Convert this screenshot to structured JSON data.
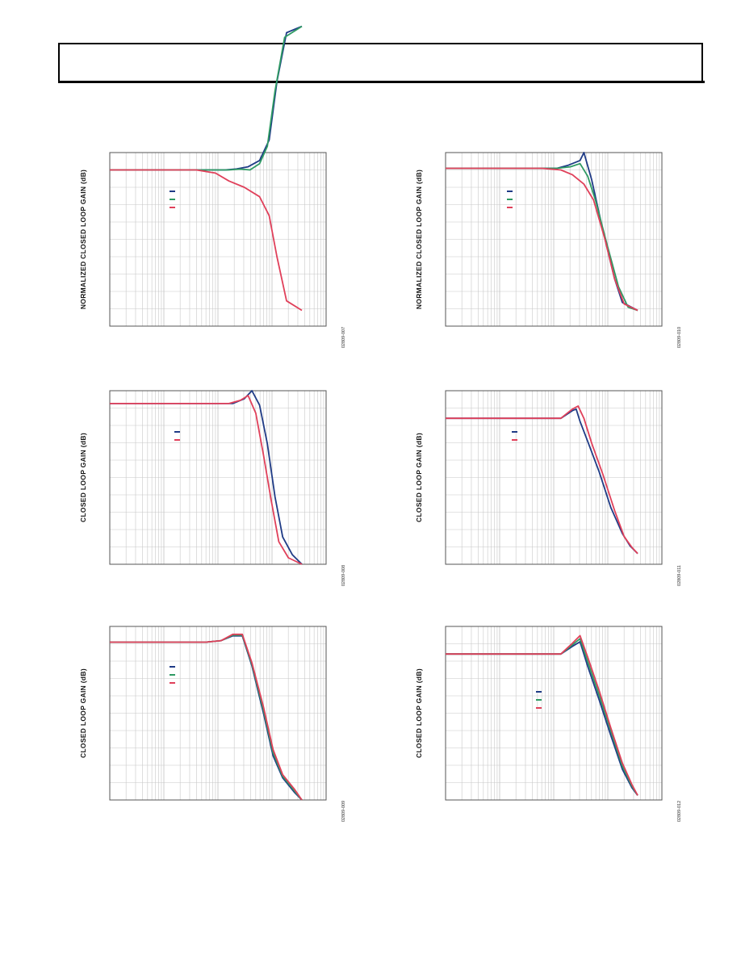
{
  "page": {
    "header": {
      "text": ""
    }
  },
  "colors": {
    "blue": "#1f3b86",
    "green": "#2e9a63",
    "red": "#e0405a",
    "grid": "#c8c8c8",
    "frame": "#555555"
  },
  "chart_data": [
    {
      "type": "line",
      "ylabel": "NORMALIZED CLOSED LOOP GAIN (dB)",
      "figure_id": "02809-007",
      "xscale": "log",
      "legend": "upper-left inside",
      "series": [
        {
          "color": "blue",
          "x": [
            0.0,
            0.6,
            0.66,
            0.72,
            0.78,
            0.83,
            0.87,
            0.92,
            1.0
          ],
          "y": [
            -0.1,
            -0.1,
            -0.04,
            0.1,
            0.5,
            1.8,
            5.5,
            8.6,
            9.0
          ]
        },
        {
          "color": "green",
          "x": [
            0.0,
            0.62,
            0.68,
            0.73,
            0.78,
            0.82,
            0.86,
            0.91,
            1.0
          ],
          "y": [
            -0.1,
            -0.1,
            -0.05,
            -0.1,
            0.3,
            1.4,
            4.9,
            8.3,
            9.0
          ]
        },
        {
          "color": "red",
          "x": [
            0.0,
            0.45,
            0.55,
            0.62,
            0.7,
            0.78,
            0.83,
            0.87,
            0.92,
            1.0
          ],
          "y": [
            -0.1,
            -0.1,
            -0.3,
            -0.8,
            -1.2,
            -1.8,
            -3.0,
            -5.6,
            -8.4,
            -9.0
          ]
        }
      ]
    },
    {
      "type": "line",
      "ylabel": "NORMALIZED CLOSED LOOP GAIN (dB)",
      "figure_id": "02809-010",
      "xscale": "log",
      "legend": "upper-left inside",
      "series": [
        {
          "color": "blue",
          "x": [
            0.0,
            0.58,
            0.64,
            0.7,
            0.72,
            0.76,
            0.82,
            0.88,
            0.92,
            1.0
          ],
          "y": [
            0.0,
            0.0,
            0.2,
            0.5,
            1.0,
            -0.7,
            -4.0,
            -7.0,
            -8.5,
            -9.0
          ]
        },
        {
          "color": "green",
          "x": [
            0.0,
            0.58,
            0.65,
            0.7,
            0.74,
            0.78,
            0.84,
            0.9,
            0.95,
            1.0
          ],
          "y": [
            0.0,
            0.0,
            0.1,
            0.3,
            -0.5,
            -2.0,
            -4.8,
            -7.5,
            -8.8,
            -9.0
          ]
        },
        {
          "color": "red",
          "x": [
            0.0,
            0.5,
            0.6,
            0.66,
            0.72,
            0.77,
            0.83,
            0.88,
            0.93,
            1.0
          ],
          "y": [
            0.0,
            0.0,
            -0.1,
            -0.4,
            -1.0,
            -2.0,
            -4.5,
            -7.0,
            -8.6,
            -9.0
          ]
        }
      ]
    },
    {
      "type": "line",
      "ylabel": "CLOSED LOOP GAIN (dB)",
      "figure_id": "02809-008",
      "xscale": "log",
      "legend": "upper-left inside",
      "series": [
        {
          "color": "blue",
          "x": [
            0.0,
            0.64,
            0.7,
            0.74,
            0.78,
            0.82,
            0.86,
            0.9,
            0.95,
            1.0
          ],
          "y": [
            0.0,
            0.0,
            0.3,
            0.8,
            -0.1,
            -2.5,
            -5.8,
            -8.3,
            -9.4,
            -10.0
          ]
        },
        {
          "color": "red",
          "x": [
            0.0,
            0.62,
            0.68,
            0.72,
            0.76,
            0.8,
            0.84,
            0.88,
            0.93,
            1.0
          ],
          "y": [
            0.0,
            0.0,
            0.2,
            0.5,
            -0.6,
            -3.2,
            -6.0,
            -8.6,
            -9.6,
            -10.0
          ]
        }
      ]
    },
    {
      "type": "line",
      "ylabel": "CLOSED LOOP GAIN (dB)",
      "figure_id": "02809-011",
      "xscale": "log",
      "legend": "upper-left inside",
      "series": [
        {
          "color": "blue",
          "x": [
            0.0,
            0.48,
            0.6,
            0.66,
            0.68,
            0.7,
            0.74,
            0.8,
            0.86,
            0.92,
            0.96,
            1.0
          ],
          "y": [
            0.0,
            0.0,
            0.0,
            0.5,
            0.6,
            -0.2,
            -1.5,
            -3.5,
            -5.8,
            -7.5,
            -8.3,
            -8.8
          ]
        },
        {
          "color": "red",
          "x": [
            0.0,
            0.48,
            0.6,
            0.66,
            0.69,
            0.72,
            0.76,
            0.82,
            0.88,
            0.93,
            0.97,
            1.0
          ],
          "y": [
            0.0,
            0.0,
            0.0,
            0.6,
            0.8,
            0.0,
            -1.6,
            -3.7,
            -6.0,
            -7.7,
            -8.4,
            -8.8
          ]
        }
      ]
    },
    {
      "type": "line",
      "ylabel": "CLOSED LOOP GAIN (dB)",
      "figure_id": "02809-009",
      "xscale": "log",
      "legend": "upper-left inside",
      "series": [
        {
          "color": "blue",
          "x": [
            0.0,
            0.5,
            0.58,
            0.64,
            0.69,
            0.74,
            0.8,
            0.85,
            0.9,
            0.96,
            1.0
          ],
          "y": [
            0.0,
            0.0,
            0.1,
            0.4,
            0.4,
            -1.5,
            -4.5,
            -7.2,
            -8.6,
            -9.5,
            -10.0
          ]
        },
        {
          "color": "green",
          "x": [
            0.0,
            0.5,
            0.58,
            0.64,
            0.69,
            0.74,
            0.8,
            0.85,
            0.9,
            0.96,
            1.0
          ],
          "y": [
            0.0,
            0.0,
            0.1,
            0.45,
            0.45,
            -1.4,
            -4.3,
            -7.0,
            -8.5,
            -9.4,
            -10.0
          ]
        },
        {
          "color": "red",
          "x": [
            0.0,
            0.5,
            0.58,
            0.64,
            0.69,
            0.74,
            0.8,
            0.85,
            0.9,
            0.96,
            1.0
          ],
          "y": [
            0.0,
            0.0,
            0.1,
            0.5,
            0.5,
            -1.3,
            -4.1,
            -6.8,
            -8.4,
            -9.3,
            -10.0
          ]
        }
      ]
    },
    {
      "type": "line",
      "ylabel": "CLOSED LOOP GAIN (dB)",
      "figure_id": "02809-012",
      "xscale": "log",
      "legend": "upper-left inside",
      "series": [
        {
          "color": "blue",
          "x": [
            0.0,
            0.3,
            0.6,
            0.66,
            0.7,
            0.74,
            0.8,
            0.86,
            0.92,
            0.97,
            1.0
          ],
          "y": [
            0.0,
            0.0,
            0.0,
            0.5,
            0.8,
            -0.8,
            -3.0,
            -5.3,
            -7.5,
            -8.7,
            -9.2
          ]
        },
        {
          "color": "green",
          "x": [
            0.0,
            0.3,
            0.6,
            0.66,
            0.7,
            0.74,
            0.8,
            0.86,
            0.92,
            0.97,
            1.0
          ],
          "y": [
            0.0,
            0.0,
            0.0,
            0.6,
            1.0,
            -0.5,
            -2.7,
            -5.0,
            -7.3,
            -8.6,
            -9.2
          ]
        },
        {
          "color": "red",
          "x": [
            0.0,
            0.3,
            0.6,
            0.66,
            0.7,
            0.74,
            0.8,
            0.86,
            0.92,
            0.97,
            1.0
          ],
          "y": [
            0.0,
            0.0,
            0.0,
            0.7,
            1.2,
            -0.2,
            -2.4,
            -4.8,
            -7.1,
            -8.5,
            -9.2
          ]
        }
      ]
    }
  ]
}
